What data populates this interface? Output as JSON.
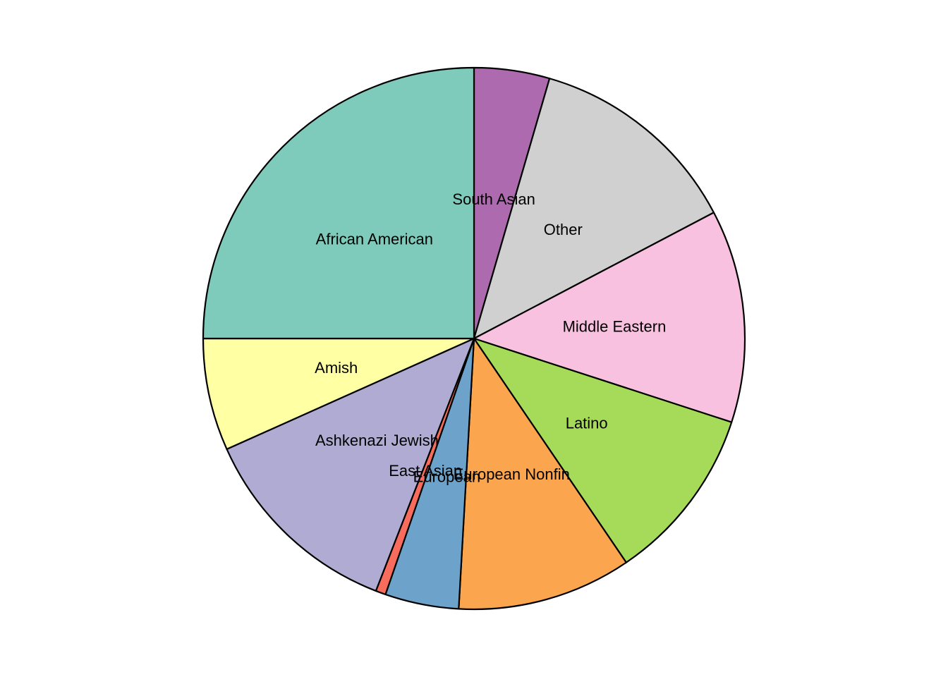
{
  "chart_data": {
    "type": "pie",
    "title": "",
    "start": "12 o'clock",
    "direction": "clockwise",
    "legend": "none",
    "slices": [
      {
        "label": "South Asian",
        "value": 4.5,
        "color": "#AE6AAE"
      },
      {
        "label": "Other",
        "value": 12.8,
        "color": "#D0D0D0"
      },
      {
        "label": "Middle Eastern",
        "value": 12.7,
        "color": "#F8C1E0"
      },
      {
        "label": "Latino",
        "value": 10.5,
        "color": "#A6DB5A"
      },
      {
        "label": "European Nonfin",
        "value": 10.4,
        "color": "#FBA64E"
      },
      {
        "label": "European",
        "value": 4.4,
        "color": "#6DA3CB"
      },
      {
        "label": "East Asian",
        "value": 0.6,
        "color": "#F86C5E"
      },
      {
        "label": "Ashkenazi Jewish",
        "value": 12.4,
        "color": "#B0ABD2"
      },
      {
        "label": "Amish",
        "value": 6.7,
        "color": "#FFFFA3"
      },
      {
        "label": "African American",
        "value": 25.0,
        "color": "#7FCBBB"
      }
    ]
  }
}
